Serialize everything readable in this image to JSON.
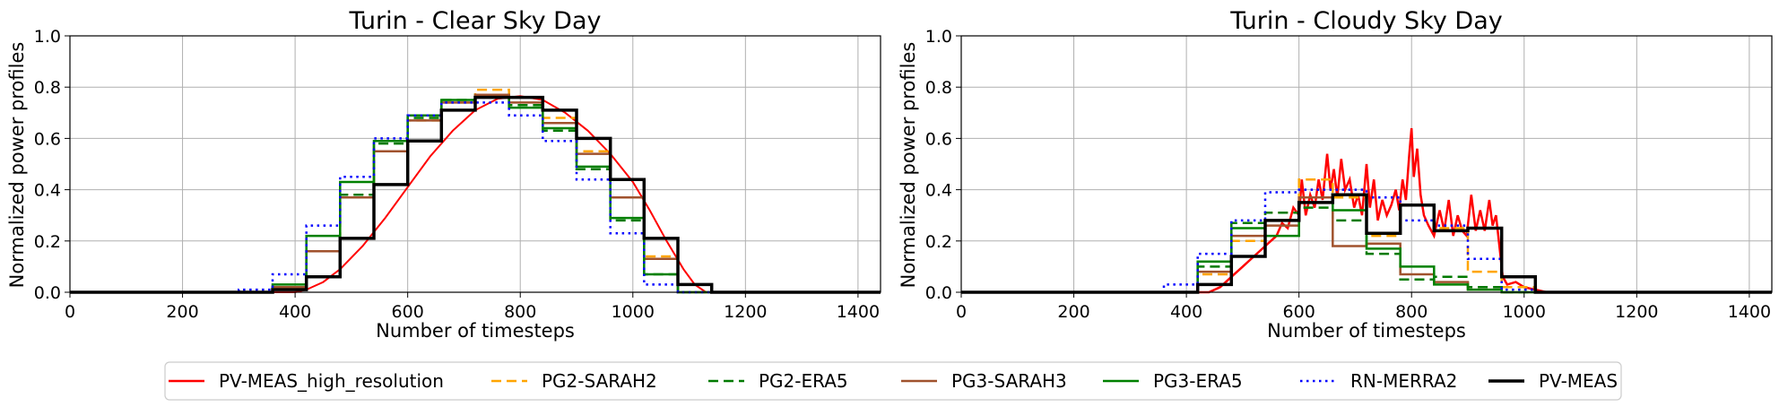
{
  "chart_data": [
    {
      "type": "line",
      "title": "Turin - Clear Sky Day",
      "xlabel": "Number of timesteps",
      "ylabel": "Normalized power profiles",
      "xlim": [
        0,
        1440
      ],
      "ylim": [
        0,
        1.0
      ],
      "xticks": [
        "0",
        "200",
        "400",
        "600",
        "800",
        "1000",
        "1200",
        "1400"
      ],
      "yticks": [
        "0.0",
        "0.2",
        "0.4",
        "0.6",
        "0.8",
        "1.0"
      ],
      "grid": true,
      "step_hours_start": 300,
      "series": [
        {
          "name": "PV-MEAS_high_resolution",
          "kind": "curve",
          "color": "#ff0000",
          "dash": "solid",
          "width": 2,
          "points": [
            [
              0,
              0
            ],
            [
              400,
              0
            ],
            [
              420,
              0.01
            ],
            [
              450,
              0.04
            ],
            [
              480,
              0.09
            ],
            [
              520,
              0.18
            ],
            [
              560,
              0.29
            ],
            [
              600,
              0.41
            ],
            [
              640,
              0.53
            ],
            [
              680,
              0.63
            ],
            [
              720,
              0.71
            ],
            [
              760,
              0.755
            ],
            [
              800,
              0.765
            ],
            [
              840,
              0.75
            ],
            [
              880,
              0.7
            ],
            [
              920,
              0.63
            ],
            [
              960,
              0.54
            ],
            [
              1000,
              0.43
            ],
            [
              1030,
              0.32
            ],
            [
              1060,
              0.2
            ],
            [
              1090,
              0.09
            ],
            [
              1110,
              0.03
            ],
            [
              1130,
              0
            ],
            [
              1440,
              0
            ]
          ]
        },
        {
          "name": "PG2-SARAH2",
          "kind": "step",
          "color": "#ffa500",
          "dash": "dashed",
          "width": 2.5,
          "values": [
            0,
            0.02,
            0.16,
            0.38,
            0.55,
            0.67,
            0.74,
            0.79,
            0.76,
            0.68,
            0.55,
            0.37,
            0.14,
            0.0,
            0.0
          ]
        },
        {
          "name": "PG2-ERA5",
          "kind": "step",
          "color": "#007a00",
          "dash": "dashed",
          "width": 2.5,
          "values": [
            0,
            0.02,
            0.16,
            0.38,
            0.58,
            0.68,
            0.75,
            0.77,
            0.73,
            0.63,
            0.48,
            0.28,
            0.07,
            0.0,
            0.0
          ]
        },
        {
          "name": "PG3-SARAH3",
          "kind": "step",
          "color": "#a0522d",
          "dash": "solid",
          "width": 2.5,
          "values": [
            0,
            0.02,
            0.16,
            0.37,
            0.55,
            0.67,
            0.74,
            0.77,
            0.74,
            0.66,
            0.54,
            0.37,
            0.13,
            0.0,
            0.0
          ]
        },
        {
          "name": "PG3-ERA5",
          "kind": "step",
          "color": "#008000",
          "dash": "solid",
          "width": 2.5,
          "values": [
            0,
            0.03,
            0.22,
            0.43,
            0.59,
            0.69,
            0.75,
            0.76,
            0.72,
            0.64,
            0.49,
            0.29,
            0.07,
            0.0,
            0.0
          ]
        },
        {
          "name": "RN-MERRA2",
          "kind": "step",
          "color": "#0000ff",
          "dash": "dotted",
          "width": 2.5,
          "values": [
            0.01,
            0.07,
            0.26,
            0.45,
            0.6,
            0.69,
            0.74,
            0.74,
            0.69,
            0.59,
            0.44,
            0.23,
            0.03,
            0.0,
            0.0
          ]
        },
        {
          "name": "PV-MEAS",
          "kind": "step",
          "color": "#000000",
          "dash": "solid",
          "width": 3.5,
          "values": [
            0,
            0.01,
            0.06,
            0.21,
            0.42,
            0.59,
            0.71,
            0.76,
            0.76,
            0.71,
            0.6,
            0.44,
            0.21,
            0.03,
            0.0
          ]
        }
      ]
    },
    {
      "type": "line",
      "title": "Turin - Cloudy Sky Day",
      "xlabel": "Number of timesteps",
      "ylabel": "Normalized power profiles",
      "xlim": [
        0,
        1440
      ],
      "ylim": [
        0,
        1.0
      ],
      "xticks": [
        "0",
        "200",
        "400",
        "600",
        "800",
        "1000",
        "1200",
        "1400"
      ],
      "yticks": [
        "0.0",
        "0.2",
        "0.4",
        "0.6",
        "0.8",
        "1.0"
      ],
      "grid": true,
      "step_hours_start": 360,
      "series": [
        {
          "name": "PV-MEAS_high_resolution",
          "kind": "curve",
          "color": "#ff0000",
          "dash": "solid",
          "width": 2.5,
          "points": [
            [
              0,
              0
            ],
            [
              440,
              0
            ],
            [
              460,
              0.02
            ],
            [
              480,
              0.06
            ],
            [
              500,
              0.1
            ],
            [
              520,
              0.14
            ],
            [
              540,
              0.18
            ],
            [
              560,
              0.22
            ],
            [
              570,
              0.27
            ],
            [
              580,
              0.25
            ],
            [
              590,
              0.33
            ],
            [
              600,
              0.3
            ],
            [
              605,
              0.44
            ],
            [
              612,
              0.3
            ],
            [
              620,
              0.38
            ],
            [
              628,
              0.33
            ],
            [
              635,
              0.44
            ],
            [
              642,
              0.36
            ],
            [
              650,
              0.54
            ],
            [
              656,
              0.4
            ],
            [
              662,
              0.48
            ],
            [
              668,
              0.37
            ],
            [
              675,
              0.52
            ],
            [
              682,
              0.4
            ],
            [
              690,
              0.44
            ],
            [
              698,
              0.33
            ],
            [
              705,
              0.38
            ],
            [
              712,
              0.3
            ],
            [
              720,
              0.5
            ],
            [
              726,
              0.33
            ],
            [
              733,
              0.44
            ],
            [
              740,
              0.28
            ],
            [
              748,
              0.36
            ],
            [
              756,
              0.3
            ],
            [
              764,
              0.34
            ],
            [
              772,
              0.4
            ],
            [
              778,
              0.32
            ],
            [
              784,
              0.44
            ],
            [
              790,
              0.36
            ],
            [
              796,
              0.54
            ],
            [
              800,
              0.64
            ],
            [
              804,
              0.45
            ],
            [
              810,
              0.56
            ],
            [
              816,
              0.38
            ],
            [
              822,
              0.3
            ],
            [
              830,
              0.26
            ],
            [
              840,
              0.22
            ],
            [
              850,
              0.32
            ],
            [
              858,
              0.24
            ],
            [
              866,
              0.36
            ],
            [
              874,
              0.22
            ],
            [
              882,
              0.3
            ],
            [
              890,
              0.24
            ],
            [
              898,
              0.22
            ],
            [
              906,
              0.38
            ],
            [
              914,
              0.24
            ],
            [
              922,
              0.32
            ],
            [
              930,
              0.24
            ],
            [
              938,
              0.36
            ],
            [
              944,
              0.26
            ],
            [
              950,
              0.3
            ],
            [
              956,
              0.18
            ],
            [
              962,
              0.06
            ],
            [
              970,
              0.03
            ],
            [
              985,
              0.04
            ],
            [
              1000,
              0.02
            ],
            [
              1020,
              0.01
            ],
            [
              1040,
              0
            ],
            [
              1440,
              0
            ]
          ]
        },
        {
          "name": "PG2-SARAH2",
          "kind": "step",
          "color": "#ffa500",
          "dash": "dashed",
          "width": 2.5,
          "values": [
            0,
            0.07,
            0.2,
            0.31,
            0.44,
            0.37,
            0.22,
            0.34,
            0.25,
            0.08,
            0.02,
            0.0
          ]
        },
        {
          "name": "PG2-ERA5",
          "kind": "step",
          "color": "#007a00",
          "dash": "dashed",
          "width": 2.5,
          "values": [
            0,
            0.1,
            0.27,
            0.31,
            0.33,
            0.28,
            0.15,
            0.05,
            0.06,
            0.02,
            0.0,
            0.0
          ]
        },
        {
          "name": "PG3-SARAH3",
          "kind": "step",
          "color": "#a0522d",
          "dash": "solid",
          "width": 2.5,
          "values": [
            0,
            0.08,
            0.22,
            0.26,
            0.37,
            0.18,
            0.19,
            0.07,
            0.04,
            0.01,
            0.0,
            0.0
          ]
        },
        {
          "name": "PG3-ERA5",
          "kind": "step",
          "color": "#008000",
          "dash": "solid",
          "width": 2.5,
          "values": [
            0,
            0.12,
            0.25,
            0.22,
            0.35,
            0.32,
            0.17,
            0.1,
            0.03,
            0.01,
            0.0,
            0.0
          ]
        },
        {
          "name": "RN-MERRA2",
          "kind": "step",
          "color": "#0000ff",
          "dash": "dotted",
          "width": 2.5,
          "values": [
            0.03,
            0.15,
            0.28,
            0.39,
            0.4,
            0.4,
            0.37,
            0.28,
            0.26,
            0.13,
            0.01,
            0.0
          ]
        },
        {
          "name": "PV-MEAS",
          "kind": "step",
          "color": "#000000",
          "dash": "solid",
          "width": 3.5,
          "values": [
            0,
            0.03,
            0.14,
            0.28,
            0.35,
            0.38,
            0.23,
            0.34,
            0.24,
            0.25,
            0.06,
            0.0
          ]
        }
      ]
    }
  ],
  "legend": {
    "placement": "bottom-center",
    "items": [
      {
        "label": "PV-MEAS_high_resolution",
        "color": "#ff0000",
        "dash": "solid"
      },
      {
        "label": "PG2-SARAH2",
        "color": "#ffa500",
        "dash": "dashed"
      },
      {
        "label": "PG2-ERA5",
        "color": "#007a00",
        "dash": "dashed"
      },
      {
        "label": "PG3-SARAH3",
        "color": "#a0522d",
        "dash": "solid"
      },
      {
        "label": "PG3-ERA5",
        "color": "#008000",
        "dash": "solid"
      },
      {
        "label": "RN-MERRA2",
        "color": "#0000ff",
        "dash": "dotted"
      },
      {
        "label": "PV-MEAS",
        "color": "#000000",
        "dash": "solid"
      }
    ]
  }
}
